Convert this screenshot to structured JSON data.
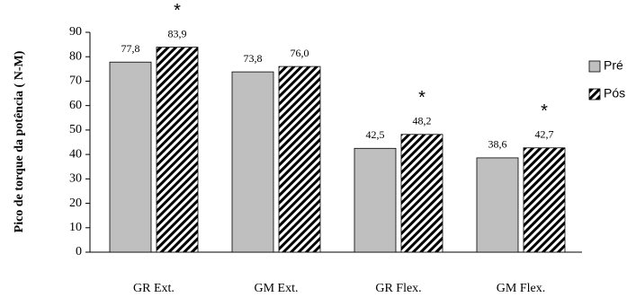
{
  "chart_data": {
    "type": "bar",
    "y_label": "Pico de torque da potência ( N-M)",
    "categories": [
      "GR Ext.",
      "GM Ext.",
      "GR Flex.",
      "GM Flex."
    ],
    "series": [
      {
        "name": "Pré",
        "color": "#bfbfbf",
        "values": [
          77.8,
          73.8,
          42.5,
          38.6
        ],
        "value_labels": [
          "77,8",
          "73,8",
          "42,5",
          "38,6"
        ]
      },
      {
        "name": "Pós",
        "color": "#000000",
        "pattern": "diagonal-hatch",
        "values": [
          83.9,
          76.0,
          48.2,
          42.7
        ],
        "value_labels": [
          "83,9",
          "76,0",
          "48,2",
          "42,7"
        ],
        "significance": [
          "*",
          null,
          "*",
          "*"
        ]
      }
    ],
    "ylim": [
      0,
      90
    ],
    "yticks": [
      0,
      10,
      20,
      30,
      40,
      50,
      60,
      70,
      80,
      90
    ],
    "grid": false,
    "legend": "right"
  }
}
